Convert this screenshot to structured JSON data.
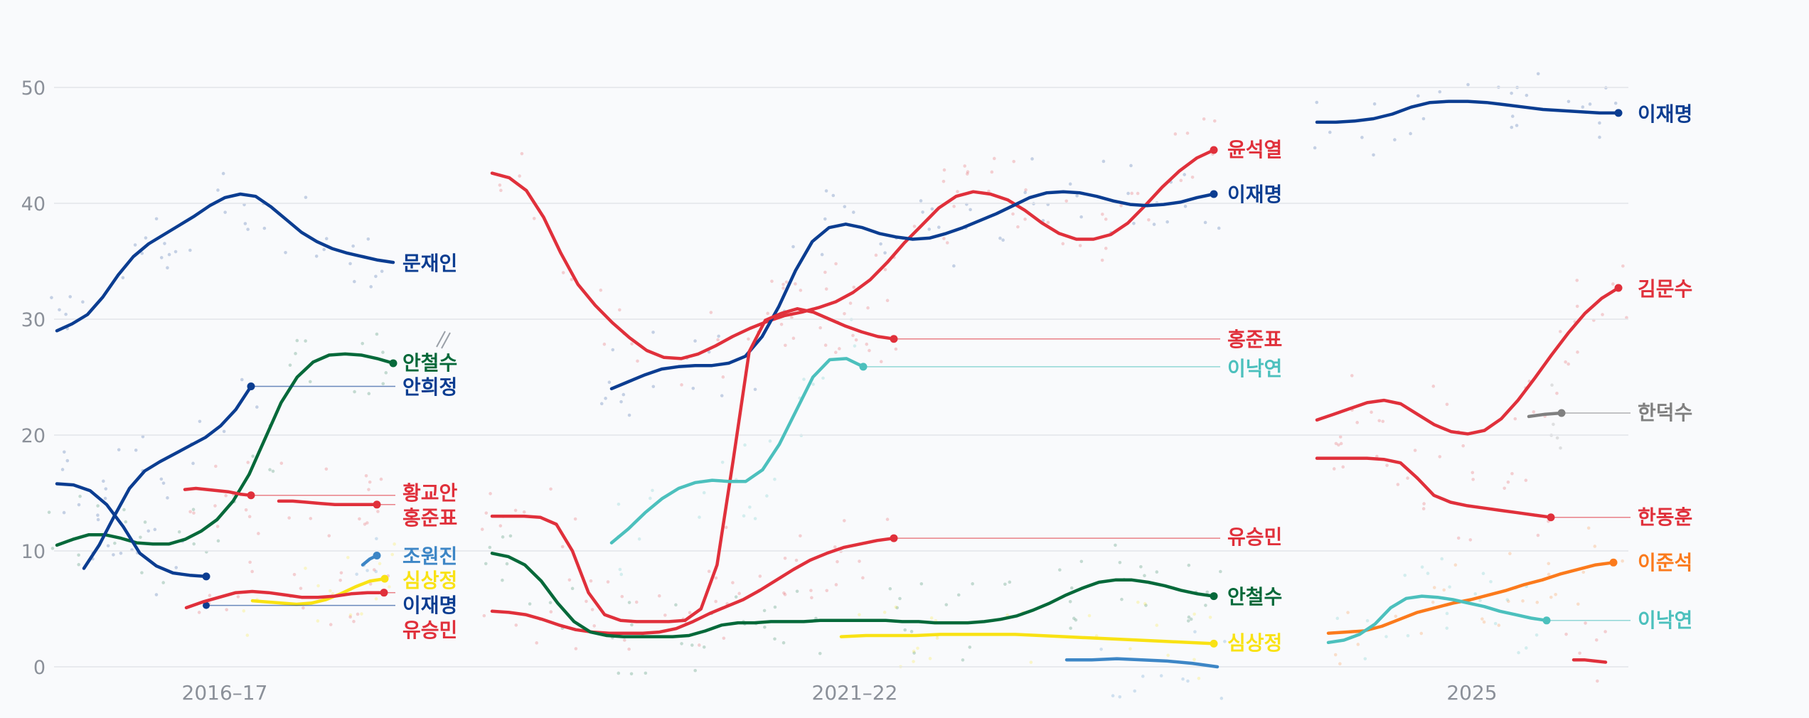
{
  "chart_data": {
    "type": "line",
    "title": "",
    "xlabel": "",
    "ylabel": "",
    "ylim": [
      0,
      55
    ],
    "yticks": [
      0,
      10,
      20,
      30,
      40,
      50
    ],
    "grid": true,
    "legend": "direct labels at line ends",
    "panels": [
      {
        "label": "2016–17",
        "series": [
          {
            "name": "문재인",
            "color": "#0b3d91",
            "values": [
              29,
              29.6,
              30.4,
              31.9,
              33.8,
              35.4,
              36.5,
              37.3,
              38.1,
              38.9,
              39.8,
              40.5,
              40.8,
              40.6,
              39.7,
              38.6,
              37.5,
              36.7,
              36.1,
              35.7,
              35.4,
              35.1,
              34.9
            ]
          },
          {
            "name": "안철수",
            "color": "#06693a",
            "values": [
              10.5,
              11.0,
              11.4,
              11.4,
              11.1,
              10.7,
              10.6,
              10.6,
              11.0,
              11.7,
              12.7,
              14.3,
              16.6,
              19.7,
              22.8,
              25.0,
              26.3,
              26.9,
              27.0,
              26.9,
              26.6,
              26.2
            ]
          },
          {
            "name": "안희정",
            "color": "#0b3d91",
            "values": [
              8.5,
              10.5,
              13.0,
              15.4,
              16.9,
              17.7,
              18.4,
              19.1,
              19.8,
              20.8,
              22.2,
              24.2
            ]
          },
          {
            "name": "황교안",
            "color": "#e0303b",
            "values": [
              15.3,
              15.4,
              15.3,
              15.2,
              15.1,
              14.9,
              14.8
            ]
          },
          {
            "name": "홍준표",
            "color": "#e0303b",
            "values": [
              14.3,
              14.3,
              14.2,
              14.1,
              14.0,
              14.0,
              14.0,
              14.0
            ]
          },
          {
            "name": "조원진",
            "color": "#3d86c6",
            "values": [
              8.8,
              9.3,
              9.6
            ]
          },
          {
            "name": "심상정",
            "color": "#f9e214",
            "values": [
              5.7,
              5.6,
              5.5,
              5.4,
              5.5,
              5.8,
              6.3,
              6.9,
              7.4,
              7.6
            ]
          },
          {
            "name": "이재명",
            "color": "#0b3d91",
            "values": [
              15.8,
              15.7,
              15.2,
              14.0,
              12.1,
              9.8,
              8.7,
              8.1,
              7.9,
              7.8
            ]
          },
          {
            "name": "유승민",
            "color": "#e0303b",
            "values": [
              5.1,
              5.6,
              6.0,
              6.4,
              6.5,
              6.4,
              6.2,
              6.0,
              6.0,
              6.1,
              6.3,
              6.4,
              6.4
            ]
          }
        ]
      },
      {
        "label": "2021–22",
        "series": [
          {
            "name": "윤석열",
            "color": "#e0303b",
            "values": [
              42.6,
              42.2,
              41.1,
              38.8,
              35.7,
              33.0,
              31.2,
              29.7,
              28.4,
              27.3,
              26.7,
              26.6,
              27.0,
              27.7,
              28.5,
              29.2,
              29.8,
              30.3,
              30.6,
              31.0,
              31.5,
              32.3,
              33.4,
              34.9,
              36.6,
              38.1,
              39.6,
              40.6,
              41.0,
              40.8,
              40.3,
              39.4,
              38.3,
              37.4,
              36.9,
              36.9,
              37.3,
              38.3,
              39.8,
              41.4,
              42.8,
              43.9,
              44.6
            ]
          },
          {
            "name": "이재명",
            "color": "#0b3d91",
            "values": [
              24.0,
              24.6,
              25.2,
              25.7,
              25.9,
              26.0,
              26.0,
              26.2,
              26.8,
              28.5,
              31.1,
              34.2,
              36.7,
              37.9,
              38.2,
              37.9,
              37.4,
              37.1,
              36.9,
              37.0,
              37.4,
              37.9,
              38.5,
              39.1,
              39.8,
              40.5,
              40.9,
              41.0,
              40.9,
              40.6,
              40.2,
              39.9,
              39.8,
              39.9,
              40.1,
              40.5,
              40.8
            ]
          },
          {
            "name": "홍준표",
            "color": "#e0303b",
            "values": [
              13.0,
              13.0,
              13.0,
              12.9,
              12.3,
              10.0,
              6.4,
              4.5,
              4.0,
              3.9,
              3.9,
              3.9,
              4.0,
              5.0,
              8.8,
              17.8,
              27.2,
              29.9,
              30.5,
              30.9,
              30.6,
              30.0,
              29.4,
              28.9,
              28.5,
              28.3
            ]
          },
          {
            "name": "이낙연",
            "color": "#4cc0bd",
            "values": [
              10.7,
              11.9,
              13.3,
              14.5,
              15.4,
              15.9,
              16.1,
              16.0,
              16.0,
              17.0,
              19.2,
              22.1,
              25.0,
              26.5,
              26.6,
              25.9
            ]
          },
          {
            "name": "유승민",
            "color": "#e0303b",
            "values": [
              4.8,
              4.7,
              4.5,
              4.1,
              3.6,
              3.2,
              3.0,
              2.9,
              2.9,
              2.9,
              3.0,
              3.3,
              3.9,
              4.6,
              5.2,
              5.8,
              6.6,
              7.5,
              8.4,
              9.2,
              9.8,
              10.3,
              10.6,
              10.9,
              11.1
            ]
          },
          {
            "name": "안철수",
            "color": "#06693a",
            "values": [
              9.8,
              9.5,
              8.8,
              7.4,
              5.5,
              3.9,
              3.0,
              2.7,
              2.6,
              2.6,
              2.6,
              2.6,
              2.7,
              3.1,
              3.6,
              3.8,
              3.8,
              3.9,
              3.9,
              3.9,
              4.0,
              4.0,
              4.0,
              4.0,
              4.0,
              3.9,
              3.9,
              3.8,
              3.8,
              3.8,
              3.9,
              4.1,
              4.4,
              4.9,
              5.5,
              6.2,
              6.8,
              7.3,
              7.5,
              7.5,
              7.3,
              7.0,
              6.6,
              6.3,
              6.1
            ]
          },
          {
            "name": "심상정",
            "color": "#f9e214",
            "values": [
              2.6,
              2.7,
              2.7,
              2.7,
              2.8,
              2.8,
              2.8,
              2.8,
              2.7,
              2.6,
              2.5,
              2.4,
              2.3,
              2.2,
              2.1,
              2.0
            ]
          },
          {
            "name": "",
            "color": "#3d86c6",
            "values": [
              0.6,
              0.6,
              0.7,
              0.6,
              0.5,
              0.3,
              0.0
            ]
          }
        ]
      },
      {
        "label": "2025",
        "series": [
          {
            "name": "이재명",
            "color": "#0b3d91",
            "values": [
              47.0,
              47.0,
              47.1,
              47.3,
              47.7,
              48.3,
              48.7,
              48.8,
              48.8,
              48.7,
              48.5,
              48.3,
              48.1,
              48.0,
              47.9,
              47.8,
              47.8
            ]
          },
          {
            "name": "김문수",
            "color": "#e0303b",
            "values": [
              21.3,
              21.8,
              22.3,
              22.8,
              23.0,
              22.7,
              21.8,
              20.9,
              20.3,
              20.1,
              20.4,
              21.4,
              23.0,
              24.9,
              26.9,
              28.8,
              30.5,
              31.8,
              32.7
            ]
          },
          {
            "name": "한덕수",
            "color": "#808080",
            "values": [
              21.6,
              21.8,
              21.9
            ]
          },
          {
            "name": "한동훈",
            "color": "#e0303b",
            "values": [
              18.0,
              18.0,
              18.0,
              18.0,
              17.9,
              17.6,
              16.3,
              14.8,
              14.2,
              13.9,
              13.7,
              13.5,
              13.3,
              13.1,
              12.9
            ]
          },
          {
            "name": "이준석",
            "color": "#fb7a1c",
            "values": [
              2.9,
              3.0,
              3.1,
              3.5,
              4.1,
              4.7,
              5.1,
              5.5,
              5.8,
              6.2,
              6.6,
              7.1,
              7.5,
              8.0,
              8.4,
              8.8,
              9.0
            ]
          },
          {
            "name": "이낙연",
            "color": "#4cc0bd",
            "values": [
              2.1,
              2.3,
              2.8,
              3.7,
              5.1,
              5.9,
              6.1,
              6.0,
              5.8,
              5.5,
              5.2,
              4.8,
              4.5,
              4.2,
              4.0
            ]
          },
          {
            "name": "",
            "color": "#e0303b",
            "values": [
              0.6,
              0.6,
              0.5,
              0.4
            ]
          }
        ]
      }
    ]
  }
}
